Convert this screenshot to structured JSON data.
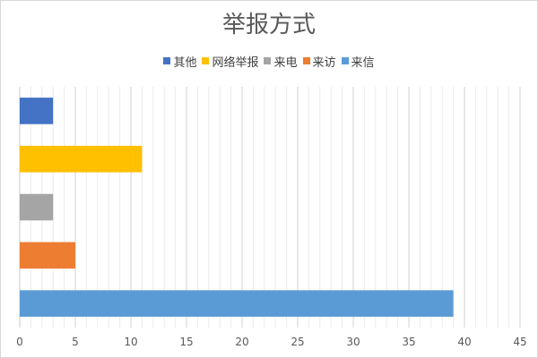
{
  "chart_data": {
    "type": "bar",
    "orientation": "horizontal",
    "title": "举报方式",
    "xlabel": "",
    "ylabel": "",
    "xlim": [
      0,
      45
    ],
    "x_ticks": [
      "0",
      "5",
      "10",
      "15",
      "20",
      "25",
      "30",
      "35",
      "40",
      "45"
    ],
    "grid": true,
    "legend_position": "top",
    "categories": [
      "来信",
      "来访",
      "来电",
      "网络举报",
      "其他"
    ],
    "values": [
      39,
      5,
      3,
      11,
      3
    ],
    "legend": [
      "其他",
      "网络举报",
      "来电",
      "来访",
      "来信"
    ],
    "colors": {
      "来信": "#5b9bd5",
      "来访": "#ed7d31",
      "来电": "#a5a5a5",
      "网络举报": "#ffc000",
      "其他": "#4472c4"
    }
  }
}
